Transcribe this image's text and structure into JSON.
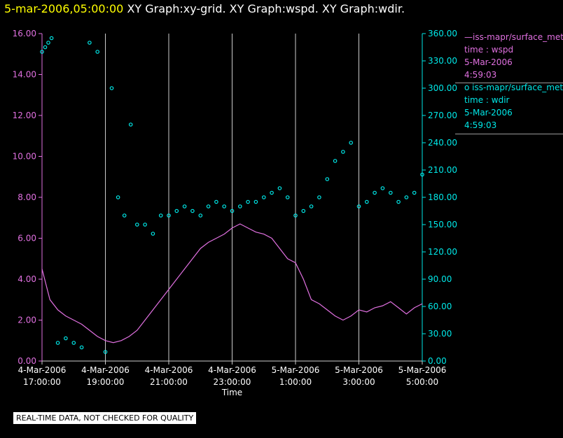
{
  "title": {
    "datetime": "5-mar-2006,05:00:00",
    "graphs": "XY Graph:xy-grid.  XY Graph:wspd.  XY Graph:wdir."
  },
  "legend": {
    "series1": {
      "line1": "—iss-mapr/surface_met",
      "line2": "time : wspd",
      "line3": "5-Mar-2006",
      "line4": "4:59:03"
    },
    "series2": {
      "line1": "o  iss-mapr/surface_met",
      "line2": "time : wdir",
      "line3": "5-Mar-2006",
      "line4": "4:59:03"
    }
  },
  "quality_notice": "REAL-TIME DATA, NOT CHECKED FOR QUALITY",
  "colors": {
    "wspd": "#e070e0",
    "wdir": "#00e8e8",
    "axis": "#cccccc",
    "grid": "#cccccc"
  },
  "chart_data": {
    "type": "line",
    "xlabel": "Time",
    "x_range_hours": [
      17.0,
      29.0
    ],
    "x_ticks": [
      {
        "h": 17,
        "line1": "4-Mar-2006",
        "line2": "17:00:00"
      },
      {
        "h": 19,
        "line1": "4-Mar-2006",
        "line2": "19:00:00"
      },
      {
        "h": 21,
        "line1": "4-Mar-2006",
        "line2": "21:00:00"
      },
      {
        "h": 23,
        "line1": "4-Mar-2006",
        "line2": "23:00:00"
      },
      {
        "h": 25,
        "line1": "5-Mar-2006",
        "line2": "1:00:00"
      },
      {
        "h": 27,
        "line1": "5-Mar-2006",
        "line2": "3:00:00"
      },
      {
        "h": 29,
        "line1": "5-Mar-2006",
        "line2": "5:00:00"
      }
    ],
    "y_left": {
      "name": "wspd",
      "range": [
        0,
        16
      ],
      "ticks": [
        "0.00",
        "2.00",
        "4.00",
        "6.00",
        "8.00",
        "10.00",
        "12.00",
        "14.00",
        "16.00"
      ]
    },
    "y_right": {
      "name": "wdir",
      "range": [
        0,
        360
      ],
      "ticks": [
        "0.00",
        "30.00",
        "60.00",
        "90.00",
        "120.00",
        "150.00",
        "180.00",
        "210.00",
        "240.00",
        "270.00",
        "300.00",
        "330.00",
        "360.00"
      ]
    },
    "series": [
      {
        "name": "wspd",
        "style": "line",
        "axis": "left",
        "x": [
          17.0,
          17.25,
          17.5,
          17.75,
          18.0,
          18.25,
          18.5,
          18.75,
          19.0,
          19.25,
          19.5,
          19.75,
          20.0,
          20.25,
          20.5,
          20.75,
          21.0,
          21.25,
          21.5,
          21.75,
          22.0,
          22.25,
          22.5,
          22.75,
          23.0,
          23.25,
          23.5,
          23.75,
          24.0,
          24.25,
          24.5,
          24.75,
          25.0,
          25.25,
          25.5,
          25.75,
          26.0,
          26.25,
          26.5,
          26.75,
          27.0,
          27.25,
          27.5,
          27.75,
          28.0,
          28.25,
          28.5,
          28.75,
          29.0
        ],
        "y": [
          4.5,
          3.0,
          2.5,
          2.2,
          2.0,
          1.8,
          1.5,
          1.2,
          1.0,
          0.9,
          1.0,
          1.2,
          1.5,
          2.0,
          2.5,
          3.0,
          3.5,
          4.0,
          4.5,
          5.0,
          5.5,
          5.8,
          6.0,
          6.2,
          6.5,
          6.7,
          6.5,
          6.3,
          6.2,
          6.0,
          5.5,
          5.0,
          4.8,
          4.0,
          3.0,
          2.8,
          2.5,
          2.2,
          2.0,
          2.2,
          2.5,
          2.4,
          2.6,
          2.7,
          2.9,
          2.6,
          2.3,
          2.6,
          2.8
        ]
      },
      {
        "name": "wdir",
        "style": "markers",
        "axis": "right",
        "x": [
          17.0,
          17.1,
          17.2,
          17.3,
          17.5,
          17.75,
          18.0,
          18.25,
          18.5,
          18.75,
          19.0,
          19.2,
          19.4,
          19.6,
          19.8,
          20.0,
          20.25,
          20.5,
          20.75,
          21.0,
          21.25,
          21.5,
          21.75,
          22.0,
          22.25,
          22.5,
          22.75,
          23.0,
          23.25,
          23.5,
          23.75,
          24.0,
          24.25,
          24.5,
          24.75,
          25.0,
          25.25,
          25.5,
          25.75,
          26.0,
          26.25,
          26.5,
          26.75,
          27.0,
          27.25,
          27.5,
          27.75,
          28.0,
          28.25,
          28.5,
          28.75,
          29.0
        ],
        "y": [
          340,
          345,
          350,
          355,
          20,
          25,
          20,
          15,
          350,
          340,
          10,
          300,
          180,
          160,
          260,
          150,
          150,
          140,
          160,
          160,
          165,
          170,
          165,
          160,
          170,
          175,
          170,
          165,
          170,
          175,
          175,
          180,
          185,
          190,
          180,
          160,
          165,
          170,
          180,
          200,
          220,
          230,
          240,
          170,
          175,
          185,
          190,
          185,
          175,
          180,
          185,
          205
        ]
      }
    ]
  }
}
